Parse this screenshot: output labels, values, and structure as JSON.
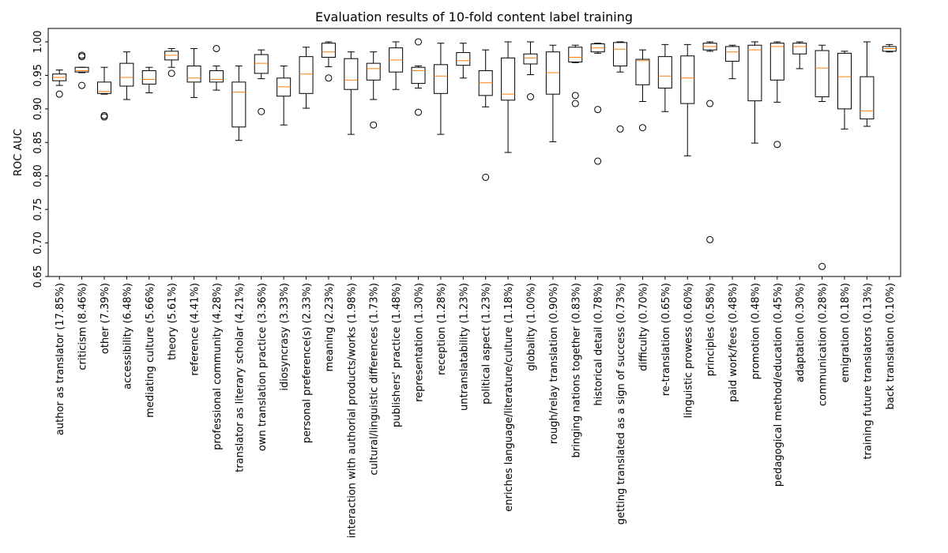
{
  "chart_data": {
    "type": "box",
    "title": "Evaluation results of 10-fold content label training",
    "xlabel": "",
    "ylabel": "ROC AUC",
    "ylim": [
      0.65,
      1.02
    ],
    "yticks": [
      0.65,
      0.7,
      0.75,
      0.8,
      0.85,
      0.9,
      0.95,
      1.0
    ],
    "ytick_labels": [
      "0.65",
      "0.70",
      "0.75",
      "0.80",
      "0.85",
      "0.90",
      "0.95",
      "1.00"
    ],
    "grid": false,
    "colors": {
      "box": "#000000",
      "median": "#ff7f0e",
      "flier": "#000000"
    },
    "categories": [
      "author as translator (17.85%)",
      "criticism (8.46%)",
      "other (7.39%)",
      "accessibility (6.48%)",
      "mediating culture (5.66%)",
      "theory (5.61%)",
      "reference (4.41%)",
      "professional community (4.28%)",
      "translator as literary scholar (4.21%)",
      "own translation practice (3.36%)",
      "idiosyncrasy (3.33%)",
      "personal preference(s) (2.33%)",
      "meaning (2.23%)",
      "interaction with authorial products/works (1.98%)",
      "cultural/linguistic differences (1.73%)",
      "publishers' practice (1.48%)",
      "representation (1.30%)",
      "reception (1.28%)",
      "untranslatability (1.23%)",
      "political aspect (1.23%)",
      "enriches language/literature/culture (1.18%)",
      "globality (1.00%)",
      "rough/relay translation (0.90%)",
      "bringing nations together (0.83%)",
      "historical detail (0.78%)",
      "getting translated as a sign of success (0.73%)",
      "difficulty (0.70%)",
      "re-translation (0.65%)",
      "linguistic prowess (0.60%)",
      "principles (0.58%)",
      "paid work/fees (0.48%)",
      "promotion (0.48%)",
      "pedagogical method/education (0.45%)",
      "adaptation (0.30%)",
      "communication (0.28%)",
      "emigration (0.18%)",
      "training future translators (0.13%)",
      "back translation (0.10%)"
    ],
    "boxes": [
      {
        "whislo": 0.935,
        "q1": 0.942,
        "med": 0.947,
        "q3": 0.952,
        "whishi": 0.958,
        "fliers": [
          0.922
        ]
      },
      {
        "whislo": 0.954,
        "q1": 0.955,
        "med": 0.957,
        "q3": 0.962,
        "whishi": 0.962,
        "fliers": [
          0.935,
          0.978,
          0.98
        ]
      },
      {
        "whislo": 0.922,
        "q1": 0.923,
        "med": 0.926,
        "q3": 0.94,
        "whishi": 0.962,
        "fliers": [
          0.89,
          0.888
        ]
      },
      {
        "whislo": 0.914,
        "q1": 0.934,
        "med": 0.947,
        "q3": 0.968,
        "whishi": 0.985,
        "fliers": []
      },
      {
        "whislo": 0.924,
        "q1": 0.937,
        "med": 0.944,
        "q3": 0.957,
        "whishi": 0.962,
        "fliers": []
      },
      {
        "whislo": 0.962,
        "q1": 0.973,
        "med": 0.98,
        "q3": 0.986,
        "whishi": 0.99,
        "fliers": [
          0.953
        ]
      },
      {
        "whislo": 0.917,
        "q1": 0.94,
        "med": 0.946,
        "q3": 0.964,
        "whishi": 0.99,
        "fliers": []
      },
      {
        "whislo": 0.928,
        "q1": 0.94,
        "med": 0.944,
        "q3": 0.957,
        "whishi": 0.964,
        "fliers": [
          0.99
        ]
      },
      {
        "whislo": 0.853,
        "q1": 0.873,
        "med": 0.925,
        "q3": 0.94,
        "whishi": 0.964,
        "fliers": []
      },
      {
        "whislo": 0.945,
        "q1": 0.953,
        "med": 0.968,
        "q3": 0.981,
        "whishi": 0.988,
        "fliers": [
          0.896
        ]
      },
      {
        "whislo": 0.876,
        "q1": 0.919,
        "med": 0.933,
        "q3": 0.946,
        "whishi": 0.964,
        "fliers": []
      },
      {
        "whislo": 0.901,
        "q1": 0.923,
        "med": 0.952,
        "q3": 0.978,
        "whishi": 0.992,
        "fliers": []
      },
      {
        "whislo": 0.963,
        "q1": 0.977,
        "med": 0.985,
        "q3": 0.998,
        "whishi": 1.0,
        "fliers": [
          0.946
        ]
      },
      {
        "whislo": 0.862,
        "q1": 0.929,
        "med": 0.943,
        "q3": 0.975,
        "whishi": 0.985,
        "fliers": []
      },
      {
        "whislo": 0.914,
        "q1": 0.943,
        "med": 0.96,
        "q3": 0.968,
        "whishi": 0.985,
        "fliers": [
          0.876
        ]
      },
      {
        "whislo": 0.929,
        "q1": 0.955,
        "med": 0.973,
        "q3": 0.991,
        "whishi": 1.0,
        "fliers": []
      },
      {
        "whislo": 0.931,
        "q1": 0.938,
        "med": 0.957,
        "q3": 0.962,
        "whishi": 0.964,
        "fliers": [
          0.895,
          1.0
        ]
      },
      {
        "whislo": 0.862,
        "q1": 0.923,
        "med": 0.949,
        "q3": 0.966,
        "whishi": 0.998,
        "fliers": []
      },
      {
        "whislo": 0.946,
        "q1": 0.965,
        "med": 0.972,
        "q3": 0.984,
        "whishi": 0.998,
        "fliers": []
      },
      {
        "whislo": 0.903,
        "q1": 0.92,
        "med": 0.939,
        "q3": 0.957,
        "whishi": 0.988,
        "fliers": [
          0.798
        ]
      },
      {
        "whislo": 0.835,
        "q1": 0.913,
        "med": 0.922,
        "q3": 0.976,
        "whishi": 1.0,
        "fliers": []
      },
      {
        "whislo": 0.951,
        "q1": 0.967,
        "med": 0.976,
        "q3": 0.982,
        "whishi": 1.0,
        "fliers": [
          0.918
        ]
      },
      {
        "whislo": 0.851,
        "q1": 0.922,
        "med": 0.954,
        "q3": 0.985,
        "whishi": 0.995,
        "fliers": []
      },
      {
        "whislo": 0.969,
        "q1": 0.97,
        "med": 0.977,
        "q3": 0.992,
        "whishi": 0.995,
        "fliers": [
          0.92,
          0.908
        ]
      },
      {
        "whislo": 0.983,
        "q1": 0.985,
        "med": 0.991,
        "q3": 0.997,
        "whishi": 0.998,
        "fliers": [
          0.899,
          0.822
        ]
      },
      {
        "whislo": 0.955,
        "q1": 0.964,
        "med": 0.989,
        "q3": 0.999,
        "whishi": 1.0,
        "fliers": [
          0.87
        ]
      },
      {
        "whislo": 0.911,
        "q1": 0.936,
        "med": 0.972,
        "q3": 0.974,
        "whishi": 0.988,
        "fliers": [
          0.872
        ]
      },
      {
        "whislo": 0.896,
        "q1": 0.931,
        "med": 0.949,
        "q3": 0.978,
        "whishi": 0.996,
        "fliers": []
      },
      {
        "whislo": 0.83,
        "q1": 0.908,
        "med": 0.946,
        "q3": 0.979,
        "whishi": 0.996,
        "fliers": []
      },
      {
        "whislo": 0.986,
        "q1": 0.988,
        "med": 0.993,
        "q3": 0.998,
        "whishi": 1.0,
        "fliers": [
          0.908,
          0.705
        ]
      },
      {
        "whislo": 0.945,
        "q1": 0.971,
        "med": 0.985,
        "q3": 0.993,
        "whishi": 0.995,
        "fliers": []
      },
      {
        "whislo": 0.849,
        "q1": 0.912,
        "med": 0.988,
        "q3": 0.995,
        "whishi": 1.0,
        "fliers": []
      },
      {
        "whislo": 0.91,
        "q1": 0.943,
        "med": 0.993,
        "q3": 0.998,
        "whishi": 1.0,
        "fliers": [
          0.847
        ]
      },
      {
        "whislo": 0.96,
        "q1": 0.982,
        "med": 0.993,
        "q3": 0.998,
        "whishi": 1.0,
        "fliers": []
      },
      {
        "whislo": 0.911,
        "q1": 0.918,
        "med": 0.961,
        "q3": 0.987,
        "whishi": 0.995,
        "fliers": [
          0.665
        ]
      },
      {
        "whislo": 0.87,
        "q1": 0.9,
        "med": 0.948,
        "q3": 0.983,
        "whishi": 0.986,
        "fliers": []
      },
      {
        "whislo": 0.874,
        "q1": 0.885,
        "med": 0.897,
        "q3": 0.948,
        "whishi": 1.0,
        "fliers": []
      },
      {
        "whislo": 0.985,
        "q1": 0.986,
        "med": 0.99,
        "q3": 0.993,
        "whishi": 0.996,
        "fliers": []
      }
    ]
  }
}
